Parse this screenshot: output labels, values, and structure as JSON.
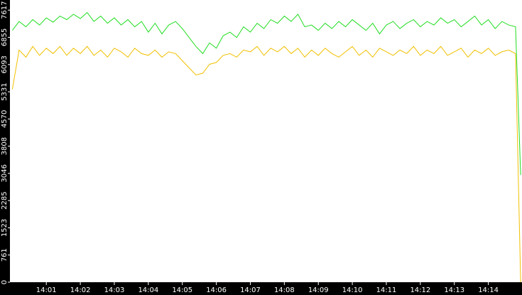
{
  "chart_data": {
    "type": "line",
    "x": [
      840,
      840.2,
      840.4,
      840.6,
      840.8,
      841,
      841.2,
      841.4,
      841.6,
      841.8,
      842,
      842.2,
      842.4,
      842.6,
      842.8,
      843,
      843.2,
      843.4,
      843.6,
      843.8,
      844,
      844.2,
      844.4,
      844.6,
      844.8,
      845,
      845.2,
      845.4,
      845.6,
      845.8,
      846,
      846.2,
      846.4,
      846.6,
      846.8,
      847,
      847.2,
      847.4,
      847.6,
      847.8,
      848,
      848.2,
      848.4,
      848.6,
      848.8,
      849,
      849.2,
      849.4,
      849.6,
      849.8,
      850,
      850.2,
      850.4,
      850.6,
      850.8,
      851,
      851.2,
      851.4,
      851.6,
      851.8,
      852,
      852.2,
      852.4,
      852.6,
      852.8,
      853,
      853.2,
      853.4,
      853.6,
      853.8,
      854,
      854.2,
      854.4,
      854.6,
      854.8,
      854.95
    ],
    "series": [
      {
        "color": "#22dd22",
        "values": [
          7050,
          7300,
          7150,
          7350,
          7200,
          7400,
          7280,
          7450,
          7350,
          7500,
          7380,
          7550,
          7300,
          7450,
          7250,
          7400,
          7200,
          7350,
          7150,
          7300,
          7000,
          7250,
          6950,
          7200,
          7300,
          7100,
          6850,
          6600,
          6400,
          6700,
          6550,
          6900,
          7000,
          6850,
          7150,
          7000,
          7250,
          7100,
          7350,
          7250,
          7450,
          7300,
          7500,
          7150,
          7200,
          7050,
          7250,
          7100,
          7300,
          7150,
          7350,
          7200,
          7050,
          7250,
          6950,
          7200,
          7300,
          7100,
          7250,
          7350,
          7150,
          7300,
          7200,
          7400,
          7250,
          7350,
          7150,
          7300,
          7450,
          7200,
          7350,
          7100,
          7300,
          7200,
          7150,
          3000
        ]
      },
      {
        "color": "#f0c000",
        "values": [
          5400,
          6500,
          6300,
          6600,
          6350,
          6550,
          6400,
          6600,
          6350,
          6550,
          6400,
          6600,
          6350,
          6500,
          6300,
          6550,
          6450,
          6300,
          6550,
          6400,
          6350,
          6500,
          6300,
          6450,
          6400,
          6200,
          6000,
          5800,
          5850,
          6100,
          6150,
          6350,
          6400,
          6300,
          6500,
          6450,
          6600,
          6350,
          6550,
          6450,
          6600,
          6400,
          6550,
          6300,
          6500,
          6350,
          6550,
          6400,
          6300,
          6450,
          6600,
          6350,
          6500,
          6300,
          6550,
          6450,
          6350,
          6500,
          6400,
          6600,
          6350,
          6500,
          6400,
          6600,
          6350,
          6450,
          6550,
          6300,
          6500,
          6400,
          6550,
          6350,
          6450,
          6500,
          6400,
          0
        ]
      }
    ],
    "xlim": [
      839.93,
      854.99
    ],
    "xticks": [
      {
        "value": 841,
        "label": "14:01"
      },
      {
        "value": 842,
        "label": "14:02"
      },
      {
        "value": 843,
        "label": "14:03"
      },
      {
        "value": 844,
        "label": "14:04"
      },
      {
        "value": 845,
        "label": "14:05"
      },
      {
        "value": 846,
        "label": "14:06"
      },
      {
        "value": 847,
        "label": "14:07"
      },
      {
        "value": 848,
        "label": "14:08"
      },
      {
        "value": 849,
        "label": "14:09"
      },
      {
        "value": 850,
        "label": "14:10"
      },
      {
        "value": 851,
        "label": "14:11"
      },
      {
        "value": 852,
        "label": "14:12"
      },
      {
        "value": 853,
        "label": "14:13"
      },
      {
        "value": 854,
        "label": "14:14"
      }
    ],
    "ylim": [
      0,
      7900
    ],
    "yticks": [
      0,
      761,
      1523,
      2285,
      3046,
      3808,
      4570,
      5331,
      6093,
      6855,
      7617
    ]
  }
}
